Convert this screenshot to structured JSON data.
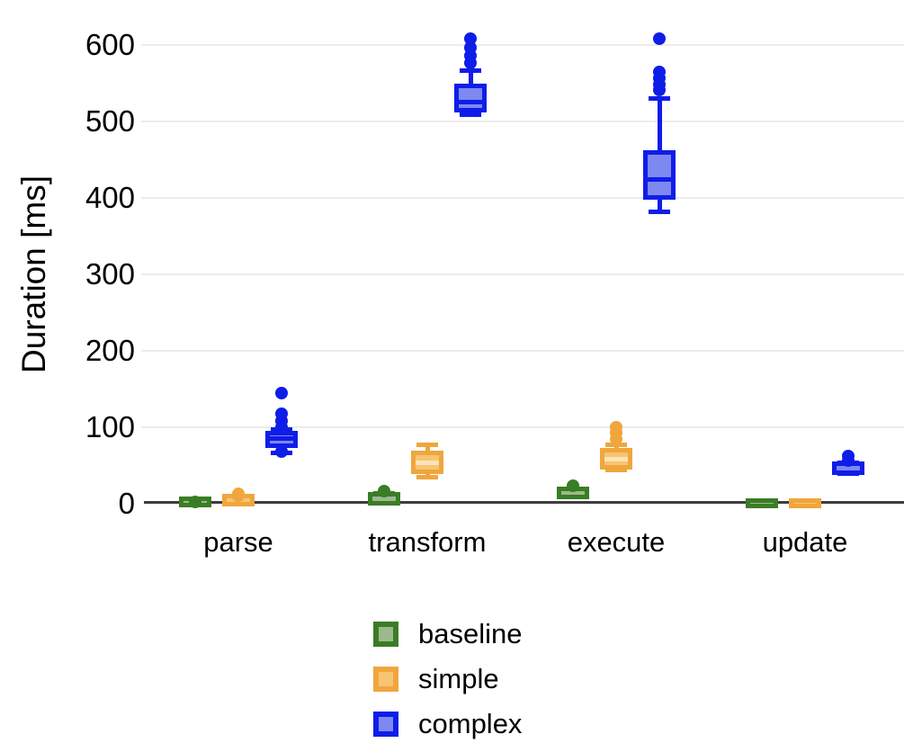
{
  "chart_data": {
    "type": "boxplot",
    "title": "",
    "ylabel": "Duration [ms]",
    "xlabel": "",
    "categories": [
      "parse",
      "transform",
      "execute",
      "update"
    ],
    "yticks": [
      0,
      100,
      200,
      300,
      400,
      500,
      600
    ],
    "ylim": [
      0,
      640
    ],
    "grid": "horizontal",
    "legend_position": "bottom",
    "colors": {
      "axis": "#3d3d3d",
      "gridline": "#ececec",
      "text": "#000000"
    },
    "series": [
      {
        "name": "baseline",
        "border_color": "#3a7d25",
        "fill_color": "#9bba8b",
        "median_color": "#3a7d25",
        "boxes": [
          {
            "category": "parse",
            "whislo": 0.5,
            "q1": 1,
            "med": 2,
            "q3": 3,
            "whishi": 4,
            "fliers": [
              2
            ]
          },
          {
            "category": "transform",
            "whislo": 2,
            "q1": 4,
            "med": 6,
            "q3": 9,
            "whishi": 13,
            "fliers": [
              16
            ]
          },
          {
            "category": "execute",
            "whislo": 9,
            "q1": 12,
            "med": 14,
            "q3": 17,
            "whishi": 20,
            "fliers": [
              24
            ]
          },
          {
            "category": "update",
            "whislo": 0,
            "q1": 0,
            "med": 0.5,
            "q3": 1,
            "whishi": 1.5,
            "fliers": []
          }
        ]
      },
      {
        "name": "simple",
        "border_color": "#f0a63d",
        "fill_color": "#f6c572",
        "median_color": "#fce3b4",
        "boxes": [
          {
            "category": "parse",
            "whislo": 0.5,
            "q1": 2,
            "med": 4,
            "q3": 7,
            "whishi": 9,
            "fliers": [
              11,
              13
            ]
          },
          {
            "category": "transform",
            "whislo": 35,
            "q1": 45,
            "med": 53,
            "q3": 64,
            "whishi": 77,
            "fliers": []
          },
          {
            "category": "execute",
            "whislo": 44,
            "q1": 51,
            "med": 58,
            "q3": 67,
            "whishi": 77,
            "fliers": [
              85,
              93,
              100
            ]
          },
          {
            "category": "update",
            "whislo": 0,
            "q1": 0,
            "med": 0.5,
            "q3": 1,
            "whishi": 1.5,
            "fliers": []
          }
        ]
      },
      {
        "name": "complex",
        "border_color": "#0f1de8",
        "fill_color": "#7d89f0",
        "median_color": "#0f1de8",
        "boxes": [
          {
            "category": "parse",
            "whislo": 66,
            "q1": 79,
            "med": 85,
            "q3": 90,
            "whishi": 97,
            "fliers": [
              68,
              100,
              108,
              118,
              145
            ]
          },
          {
            "category": "transform",
            "whislo": 509,
            "q1": 518,
            "med": 525,
            "q3": 543,
            "whishi": 567,
            "fliers": [
              576,
              586,
              596,
              608
            ]
          },
          {
            "category": "execute",
            "whislo": 382,
            "q1": 404,
            "med": 424,
            "q3": 456,
            "whishi": 530,
            "fliers": [
              541,
              548,
              556,
              565,
              608
            ]
          },
          {
            "category": "update",
            "whislo": 39,
            "q1": 43,
            "med": 46,
            "q3": 50,
            "whishi": 53,
            "fliers": [
              57,
              62
            ]
          }
        ]
      }
    ]
  }
}
